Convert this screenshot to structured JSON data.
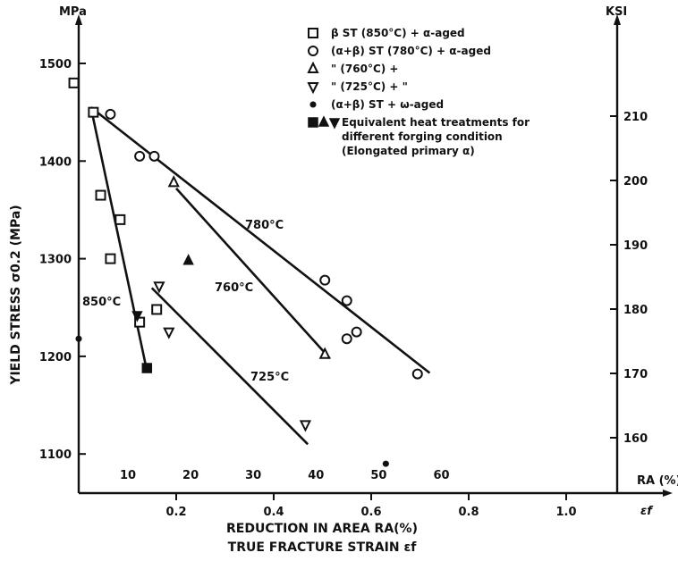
{
  "chart_data": {
    "type": "scatter",
    "title": "",
    "ylabel_left_unit": "MPa",
    "ylabel_right_unit": "KSI",
    "ylabel": "YIELD STRESS σ0.2 (MPa)",
    "xlabel_line1": "REDUCTION IN AREA RA(%)",
    "xlabel_line2": "TRUE FRACTURE STRAIN εf",
    "ra_axis_label": "RA (%)",
    "strain_axis_label": "εf",
    "ylim": [
      1040,
      1560
    ],
    "xlim": [
      0,
      1.1
    ],
    "y_ticks": [
      1100,
      1200,
      1300,
      1400,
      1500
    ],
    "y_tick_labels": [
      "1100",
      "1200",
      "1300",
      "1400",
      "1500"
    ],
    "ksi_ticks": [
      160,
      170,
      180,
      190,
      200,
      210
    ],
    "ksi_tick_labels": [
      "160",
      "170",
      "180",
      "190",
      "200",
      "210"
    ],
    "strain_ticks": [
      0.2,
      0.4,
      0.6,
      0.8,
      1.0
    ],
    "strain_tick_labels": [
      "0.2",
      "0.4",
      "0.6",
      "0.8",
      "1.0"
    ],
    "ra_ticks": [
      10,
      20,
      30,
      40,
      50,
      60
    ],
    "ra_tick_labels": [
      "10",
      "20",
      "30",
      "40",
      "50",
      "60"
    ],
    "legend": [
      {
        "marker": "square",
        "label": "β ST (850°C) + α-aged"
      },
      {
        "marker": "circle",
        "label": "(α+β) ST (780°C) + α-aged"
      },
      {
        "marker": "triangle-up",
        "label": "\"     (760°C) +"
      },
      {
        "marker": "triangle-down",
        "label": "\"     (725°C) +       \""
      },
      {
        "marker": "dot",
        "label": "(α+β) ST + ω-aged"
      },
      {
        "marker": "filled-combo",
        "label": "Equivalent heat treatments for different forging condition (Elongated primary α)"
      }
    ],
    "series": [
      {
        "marker": "square",
        "points": [
          [
            -0.01,
            1480
          ],
          [
            0.03,
            1450
          ],
          [
            0.045,
            1365
          ],
          [
            0.085,
            1340
          ],
          [
            0.065,
            1300
          ],
          [
            0.16,
            1248
          ],
          [
            0.125,
            1235
          ]
        ]
      },
      {
        "marker": "circle",
        "points": [
          [
            0.065,
            1448
          ],
          [
            0.125,
            1405
          ],
          [
            0.155,
            1405
          ],
          [
            0.505,
            1278
          ],
          [
            0.55,
            1257
          ],
          [
            0.55,
            1218
          ],
          [
            0.57,
            1225
          ],
          [
            0.695,
            1182
          ]
        ]
      },
      {
        "marker": "triangle-up",
        "points": [
          [
            0.195,
            1378
          ],
          [
            0.505,
            1202
          ]
        ]
      },
      {
        "marker": "triangle-down",
        "points": [
          [
            0.165,
            1272
          ],
          [
            0.185,
            1225
          ],
          [
            0.465,
            1130
          ]
        ]
      },
      {
        "marker": "dot",
        "points": [
          [
            0.0,
            1218
          ],
          [
            0.63,
            1090
          ]
        ]
      },
      {
        "marker": "filled-square",
        "points": [
          [
            0.14,
            1188
          ]
        ]
      },
      {
        "marker": "filled-triangle-up",
        "points": [
          [
            0.225,
            1298
          ]
        ]
      },
      {
        "marker": "filled-triangle-down",
        "points": [
          [
            0.12,
            1242
          ]
        ]
      }
    ],
    "fit_lines": [
      {
        "label": "850°C",
        "from": [
          0.025,
          1455
        ],
        "to": [
          0.14,
          1185
        ]
      },
      {
        "label": "780°C",
        "from": [
          0.025,
          1455
        ],
        "to": [
          0.72,
          1183
        ]
      },
      {
        "label": "760°C",
        "from": [
          0.2,
          1372
        ],
        "to": [
          0.515,
          1198
        ]
      },
      {
        "label": "725°C",
        "from": [
          0.15,
          1270
        ],
        "to": [
          0.47,
          1110
        ]
      }
    ]
  }
}
